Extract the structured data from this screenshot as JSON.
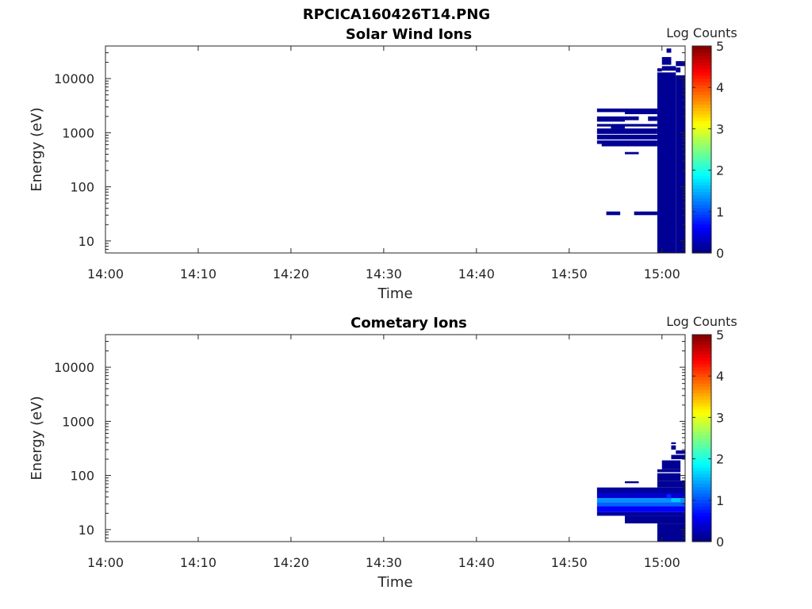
{
  "figure_title": "RPCICA160426T14.PNG",
  "colors": {
    "bg": "#ffffff",
    "axis": "#262626"
  },
  "chart_data": [
    {
      "type": "heatmap",
      "title": "Solar Wind Ions",
      "xlabel": "Time",
      "ylabel": "Energy (eV)",
      "yscale": "log",
      "ylim": [
        6,
        40000
      ],
      "xlim": [
        "14:00",
        "15:02.5"
      ],
      "xticks": [
        "14:00",
        "14:10",
        "14:20",
        "14:30",
        "14:40",
        "14:50",
        "15:00"
      ],
      "yticks": [
        "10",
        "100",
        "1000",
        "10000"
      ],
      "colorbar": {
        "label": "Log Counts",
        "ticks": [
          "0",
          "1",
          "2",
          "3",
          "4",
          "5"
        ],
        "range": [
          0,
          5
        ],
        "colormap": "jet"
      },
      "cells": [
        [
          "14:53.0",
          "14:56.0",
          2400,
          2800,
          0.1
        ],
        [
          "14:56.0",
          "14:59.5",
          2200,
          2800,
          0.1
        ],
        [
          "14:53.0",
          "14:56.0",
          1600,
          2000,
          0.1
        ],
        [
          "14:56.0",
          "14:57.5",
          1700,
          2000,
          0.1
        ],
        [
          "14:58.5",
          "14:59.5",
          1650,
          2000,
          0.1
        ],
        [
          "14:53.0",
          "14:54.5",
          1300,
          1450,
          0.1
        ],
        [
          "14:56.0",
          "14:59.5",
          1300,
          1450,
          0.1
        ],
        [
          "14:54.5",
          "14:56.0",
          1200,
          1450,
          0.1
        ],
        [
          "14:53.0",
          "14:59.5",
          950,
          1200,
          0.1
        ],
        [
          "14:53.0",
          "14:59.5",
          750,
          920,
          0.1
        ],
        [
          "14:53.0",
          "14:59.5",
          620,
          720,
          0.1
        ],
        [
          "14:53.5",
          "14:59.5",
          560,
          620,
          0.1
        ],
        [
          "14:56.0",
          "14:57.5",
          400,
          440,
          0.1
        ],
        [
          "14:54.0",
          "14:55.5",
          30,
          35,
          0.1
        ],
        [
          "14:57.0",
          "14:59.5",
          30,
          35,
          0.1
        ],
        [
          "14:59.5",
          "15:01.5",
          6,
          13000,
          0.1
        ],
        [
          "14:59.5",
          "15:00.0",
          13500,
          15500,
          0.1
        ],
        [
          "15:00.0",
          "15:01.5",
          14000,
          17000,
          0.1
        ],
        [
          "15:00.0",
          "15:01.0",
          18000,
          25000,
          0.1
        ],
        [
          "15:00.5",
          "15:01.0",
          30000,
          36000,
          0.1
        ],
        [
          "15:01.5",
          "15:02.0",
          13000,
          16000,
          0.1
        ],
        [
          "15:01.5",
          "15:02.5",
          17000,
          21000,
          0.1
        ],
        [
          "15:01.5",
          "15:02.5",
          6,
          11500,
          0.1
        ]
      ]
    },
    {
      "type": "heatmap",
      "title": "Cometary Ions",
      "xlabel": "Time",
      "ylabel": "Energy (eV)",
      "yscale": "log",
      "ylim": [
        6,
        40000
      ],
      "xlim": [
        "14:00",
        "15:02.5"
      ],
      "xticks": [
        "14:00",
        "14:10",
        "14:20",
        "14:30",
        "14:40",
        "14:50",
        "15:00"
      ],
      "yticks": [
        "10",
        "100",
        "1000",
        "10000"
      ],
      "colorbar": {
        "label": "Log Counts",
        "ticks": [
          "0",
          "1",
          "2",
          "3",
          "4",
          "5"
        ],
        "range": [
          0,
          5
        ],
        "colormap": "jet"
      },
      "cells": [
        [
          "14:53.0",
          "15:02.5",
          47,
          60,
          0.15
        ],
        [
          "14:53.0",
          "15:02.5",
          38,
          47,
          0.4
        ],
        [
          "14:53.0",
          "15:02.5",
          32,
          38,
          1.35
        ],
        [
          "14:53.0",
          "15:02.5",
          27,
          32,
          1.1
        ],
        [
          "14:53.0",
          "15:02.5",
          21,
          27,
          0.6
        ],
        [
          "14:53.0",
          "15:02.5",
          18,
          21,
          0.15
        ],
        [
          "14:56.0",
          "15:02.5",
          13,
          18,
          0.1
        ],
        [
          "14:59.5",
          "15:02.5",
          6,
          13,
          0.1
        ],
        [
          "14:59.5",
          "15:02.5",
          60,
          80,
          0.1
        ],
        [
          "14:59.5",
          "15:02.0",
          80,
          110,
          0.1
        ],
        [
          "14:59.5",
          "15:02.0",
          115,
          130,
          0.1
        ],
        [
          "15:00.0",
          "15:02.0",
          130,
          190,
          0.1
        ],
        [
          "15:01.0",
          "15:02.5",
          200,
          240,
          0.1
        ],
        [
          "15:01.5",
          "15:02.5",
          250,
          290,
          0.1
        ],
        [
          "15:01.0",
          "15:01.5",
          300,
          360,
          0.1
        ],
        [
          "15:01.0",
          "15:01.5",
          380,
          410,
          0.1
        ],
        [
          "14:56.0",
          "14:57.5",
          72,
          78,
          0.1
        ],
        [
          "15:01.0",
          "15:02.0",
          32,
          38,
          1.6
        ],
        [
          "15:00.5",
          "15:01.0",
          38,
          45,
          0.8
        ]
      ]
    }
  ]
}
